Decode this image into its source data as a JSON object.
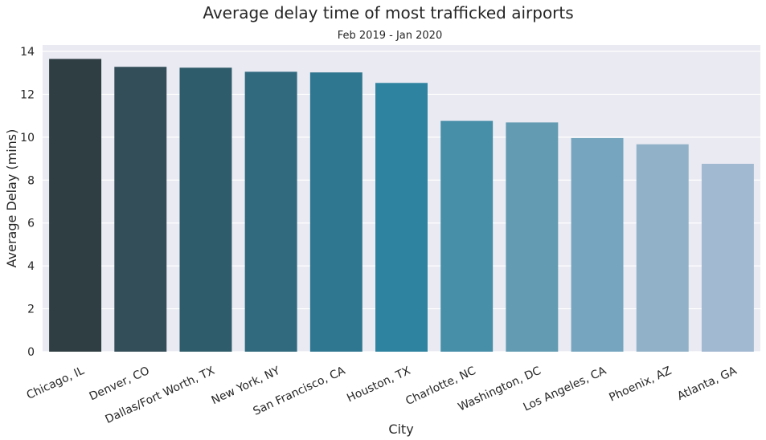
{
  "chart_data": {
    "type": "bar",
    "title": "Average delay time of most trafficked airports",
    "subtitle": "Feb 2019 - Jan 2020",
    "xlabel": "City",
    "ylabel": "Average Delay (mins)",
    "ylim": [
      0,
      14.3
    ],
    "yticks": [
      "0",
      "2",
      "4",
      "6",
      "8",
      "10",
      "12",
      "14"
    ],
    "categories": [
      "Chicago, IL",
      "Denver, CO",
      "Dallas/Fort Worth, TX",
      "New York, NY",
      "San Francisco, CA",
      "Houston, TX",
      "Charlotte, NC",
      "Washington, DC",
      "Los Angeles, CA",
      "Phoenix, AZ",
      "Atlanta, GA"
    ],
    "values": [
      13.65,
      13.28,
      13.24,
      13.05,
      13.02,
      12.53,
      10.76,
      10.69,
      9.96,
      9.67,
      8.76
    ],
    "colors": [
      "#2f3e43",
      "#334e58",
      "#2f5c6a",
      "#316a7f",
      "#2f7790",
      "#2e83a0",
      "#478ea9",
      "#629bb2",
      "#76a6bf",
      "#90b1c8",
      "#a2b9d2"
    ],
    "grid": true,
    "background": "#eaeaf2"
  }
}
